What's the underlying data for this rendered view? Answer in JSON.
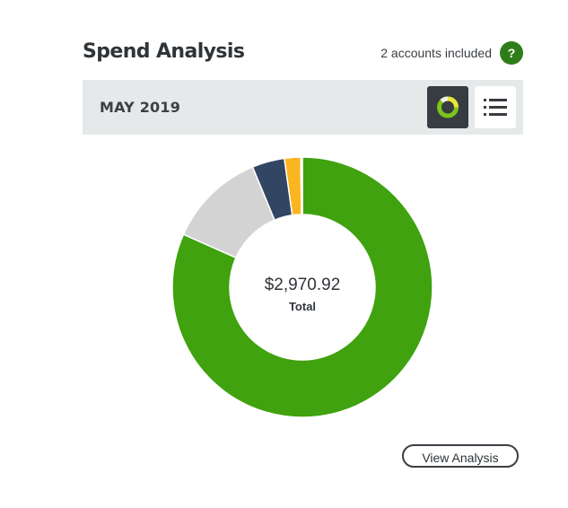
{
  "header": {
    "title": "Spend Analysis",
    "accounts_text": "2 accounts included",
    "help_label": "?"
  },
  "period": {
    "label": "MAY 2019"
  },
  "toggles": {
    "donut_icon": "donut-chart-icon",
    "list_icon": "list-icon",
    "active": "donut"
  },
  "chart_data": {
    "type": "pie",
    "style": "donut",
    "total_label": "Total",
    "total_value": "$2,970.92",
    "slices": [
      {
        "color": "#3fa20e",
        "share": 0.81
      },
      {
        "color": "#d3d3d3",
        "share": 0.12
      },
      {
        "color": "#324563",
        "share": 0.04
      },
      {
        "color": "#fbb520",
        "share": 0.02
      },
      {
        "color": "#c9c9c9",
        "share": 0.002
      }
    ]
  },
  "actions": {
    "view_analysis_label": "View Analysis"
  },
  "colors": {
    "help_green": "#2e7d1a",
    "bar_background": "#e6e9ea",
    "toggle_active": "#363c41"
  }
}
